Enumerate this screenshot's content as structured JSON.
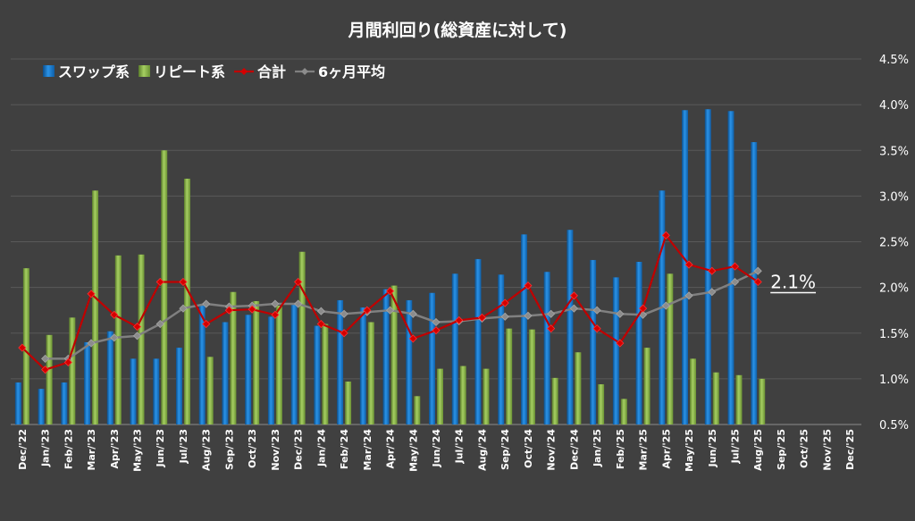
{
  "chart_data": {
    "type": "bar",
    "title": "月間利回り(総資産に対して)",
    "categories": [
      "Dec/'22",
      "Jan/'23",
      "Feb/'23",
      "Mar/'23",
      "Apr/'23",
      "May/'23",
      "Jun/'23",
      "Jul/'23",
      "Aug/'23",
      "Sep/'23",
      "Oct/'23",
      "Nov/'23",
      "Dec/'23",
      "Jan/'24",
      "Feb/'24",
      "Mar/'24",
      "Apr/'24",
      "May/'24",
      "Jun/'24",
      "Jul/'24",
      "Aug/'24",
      "Sep/'24",
      "Oct/'24",
      "Nov/'24",
      "Dec/'24",
      "Jan/'25",
      "Feb/'25",
      "Mar/'25",
      "Apr/'25",
      "May/'25",
      "Jun/'25",
      "Jul/'25",
      "Aug/'25",
      "Sep/'25",
      "Oct/'25",
      "Nov/'25",
      "Dec/'25"
    ],
    "ylim": [
      0.5,
      4.5
    ],
    "yticks": [
      "0.5%",
      "1.0%",
      "1.5%",
      "2.0%",
      "2.5%",
      "3.0%",
      "3.5%",
      "4.0%",
      "4.5%"
    ],
    "ytick_values": [
      0.5,
      1.0,
      1.5,
      2.0,
      2.5,
      3.0,
      3.5,
      4.0,
      4.5
    ],
    "legend_position": "top-left",
    "series": [
      {
        "name": "スワップ系",
        "kind": "bar",
        "color": "#1a7fd4",
        "values": [
          0.96,
          0.89,
          0.96,
          1.4,
          1.52,
          1.22,
          1.22,
          1.34,
          1.8,
          1.62,
          1.7,
          1.68,
          1.83,
          1.58,
          1.86,
          1.78,
          1.98,
          1.86,
          1.94,
          2.15,
          2.31,
          2.14,
          2.58,
          2.17,
          2.63,
          2.3,
          2.11,
          2.28,
          3.06,
          3.94,
          3.95,
          3.93,
          3.59,
          null,
          null,
          null,
          null
        ]
      },
      {
        "name": "リピート系",
        "kind": "bar",
        "color": "#8ab84a",
        "values": [
          2.21,
          1.48,
          1.67,
          3.06,
          2.35,
          2.36,
          3.5,
          3.19,
          1.24,
          1.95,
          1.85,
          1.8,
          2.39,
          1.6,
          0.97,
          1.62,
          2.02,
          0.81,
          1.11,
          1.14,
          1.11,
          1.55,
          1.54,
          1.01,
          1.29,
          0.94,
          0.78,
          1.34,
          2.15,
          1.22,
          1.07,
          1.04,
          1.0,
          null,
          null,
          null,
          null
        ]
      },
      {
        "name": "合計",
        "kind": "line",
        "color": "#c00000",
        "values": [
          1.34,
          1.1,
          1.18,
          1.93,
          1.7,
          1.57,
          2.06,
          2.06,
          1.6,
          1.75,
          1.76,
          1.7,
          2.06,
          1.6,
          1.5,
          1.75,
          1.96,
          1.44,
          1.53,
          1.64,
          1.67,
          1.83,
          2.02,
          1.55,
          1.91,
          1.55,
          1.39,
          1.77,
          2.57,
          2.25,
          2.18,
          2.23,
          2.06,
          null,
          null,
          null,
          null
        ]
      },
      {
        "name": "6ヶ月平均",
        "kind": "line",
        "color": "#808080",
        "values": [
          null,
          1.22,
          1.22,
          1.39,
          1.45,
          1.47,
          1.6,
          1.77,
          1.82,
          1.79,
          1.8,
          1.82,
          1.82,
          1.74,
          1.71,
          1.73,
          1.75,
          1.71,
          1.62,
          1.63,
          1.66,
          1.68,
          1.69,
          1.71,
          1.77,
          1.75,
          1.71,
          1.7,
          1.8,
          1.91,
          1.95,
          2.06,
          2.18,
          null,
          null,
          null,
          null
        ]
      }
    ],
    "annotation": {
      "text": "2.1%",
      "category_index": 32,
      "value": 2.06
    }
  }
}
